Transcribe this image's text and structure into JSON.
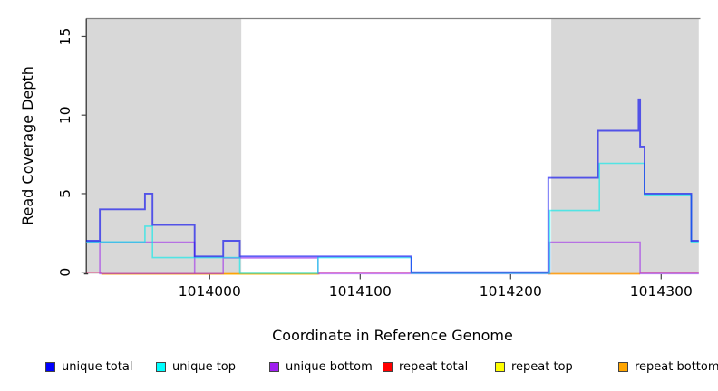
{
  "chart_data": {
    "type": "line",
    "step": true,
    "title": "",
    "xlabel": "Coordinate in Reference Genome",
    "ylabel": "Read Coverage Depth",
    "xlim": [
      1013918,
      1014325
    ],
    "ylim": [
      0,
      16.3
    ],
    "x_ticks": [
      1014000,
      1014100,
      1014200,
      1014300
    ],
    "y_ticks": [
      0,
      5,
      10,
      15
    ],
    "grid": false,
    "legend_position": "bottom",
    "shaded_regions": [
      {
        "name": "masked-region-left",
        "x0": 1013918,
        "x1": 1014021,
        "color": "#d8d8d8"
      },
      {
        "name": "masked-region-right",
        "x0": 1014227,
        "x1": 1014325,
        "color": "#d8d8d8"
      }
    ],
    "series": [
      {
        "name": "repeat total",
        "plot_color": "rgba(225,20,95,0.5)",
        "line_width": 1.4,
        "y_nudge": 301.0,
        "segments": [
          [
            [
              1013918,
              0
            ],
            [
              1013928,
              0
            ]
          ],
          [
            [
              1014072,
              0
            ],
            [
              1014225,
              0
            ]
          ],
          [
            [
              1014286,
              0
            ],
            [
              1014325,
              0
            ]
          ]
        ]
      },
      {
        "name": "repeat top",
        "plot_color": "rgba(255,235,0,0.9)",
        "line_width": 1.4,
        "y_nudge": 302.8,
        "segments": [
          [
            [
              1013928,
              0
            ],
            [
              1014072,
              0
            ]
          ]
        ]
      },
      {
        "name": "repeat bottom",
        "plot_color": "rgba(255,150,0,0.85)",
        "line_width": 1.7,
        "y_nudge": 302.5,
        "segments": [
          [
            [
              1013928,
              0
            ],
            [
              1014073,
              0
            ]
          ],
          [
            [
              1014225,
              0
            ],
            [
              1014286,
              0
            ]
          ]
        ]
      },
      {
        "name": "unique bottom",
        "plot_color": "rgba(160,45,235,0.6)",
        "line_width": 1.6,
        "y_nudge": 302.3,
        "segments": [
          [
            [
              1013918,
              2
            ],
            [
              1013927,
              0
            ],
            [
              1014009,
              1
            ],
            [
              1014072,
              0
            ],
            [
              1014226,
              2
            ],
            [
              1014286,
              0
            ],
            [
              1014325,
              0
            ]
          ],
          [
            [
              1013927,
              2
            ],
            [
              1013990,
              0
            ]
          ]
        ]
      },
      {
        "name": "unique top",
        "plot_color": "rgba(0,235,235,0.62)",
        "line_width": 1.6,
        "y_nudge": 302.0,
        "segments": [
          [
            [
              1013918,
              2
            ],
            [
              1013957,
              3
            ],
            [
              1013962,
              1
            ],
            [
              1014020,
              0
            ],
            [
              1014072,
              1
            ],
            [
              1014134,
              0
            ],
            [
              1014226,
              4
            ],
            [
              1014259,
              7
            ],
            [
              1014289,
              5
            ],
            [
              1014320,
              2
            ],
            [
              1014325,
              2
            ]
          ]
        ]
      },
      {
        "name": "unique total",
        "plot_color": "rgba(0,0,240,0.62)",
        "line_width": 1.9,
        "y_nudge": 300.7,
        "segments": [
          [
            [
              1013918,
              2
            ],
            [
              1013927,
              4
            ],
            [
              1013957,
              5
            ],
            [
              1013962,
              3
            ],
            [
              1013990,
              1
            ],
            [
              1014009,
              2
            ],
            [
              1014020,
              1
            ],
            [
              1014134,
              0
            ],
            [
              1014225,
              6
            ],
            [
              1014258,
              9
            ],
            [
              1014285,
              11
            ],
            [
              1014286,
              8
            ],
            [
              1014289,
              5
            ],
            [
              1014320,
              2
            ],
            [
              1014325,
              2
            ]
          ]
        ]
      }
    ],
    "legend": [
      {
        "label": "unique total",
        "color": "#0000ff"
      },
      {
        "label": "unique top",
        "color": "#00ffff"
      },
      {
        "label": "unique bottom",
        "color": "#a020f0"
      },
      {
        "label": "repeat total",
        "color": "#ff0000"
      },
      {
        "label": "repeat top",
        "color": "#ffff00"
      },
      {
        "label": "repeat bottom",
        "color": "#ffa500"
      }
    ]
  }
}
